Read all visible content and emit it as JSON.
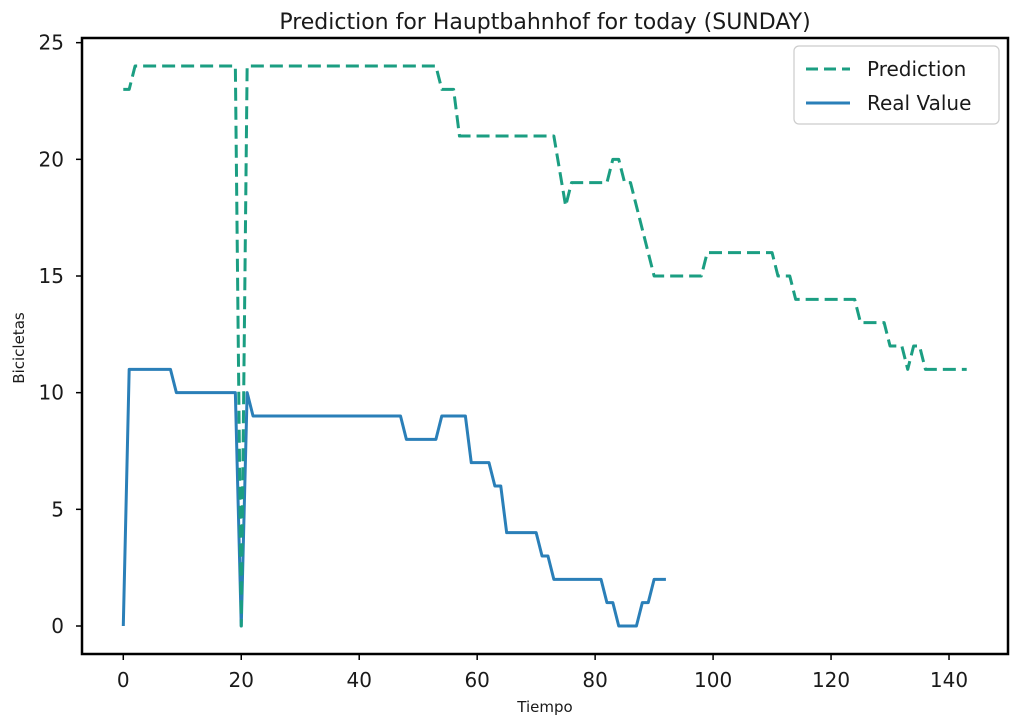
{
  "chart_data": {
    "type": "line",
    "title": "Prediction for Hauptbahnhof for today (SUNDAY)",
    "xlabel": "Tiempo",
    "ylabel": "Bicicletas",
    "xlim": [
      -7,
      150
    ],
    "ylim": [
      -1.2,
      25.2
    ],
    "xticks": [
      0,
      20,
      40,
      60,
      80,
      100,
      120,
      140
    ],
    "yticks": [
      0,
      5,
      10,
      15,
      20,
      25
    ],
    "grid": false,
    "legend_position": "top-right",
    "colors": {
      "prediction": "#1b9e82",
      "real": "#2a7fb8",
      "frame": "#000000"
    },
    "series": [
      {
        "name": "Prediction",
        "style": "dashed",
        "x": [
          0,
          1,
          2,
          3,
          4,
          5,
          6,
          7,
          8,
          9,
          10,
          11,
          12,
          13,
          14,
          15,
          16,
          17,
          18,
          19,
          20,
          21,
          22,
          23,
          24,
          25,
          26,
          27,
          28,
          29,
          30,
          31,
          32,
          33,
          34,
          35,
          36,
          37,
          38,
          39,
          40,
          41,
          42,
          43,
          44,
          45,
          46,
          47,
          48,
          49,
          50,
          51,
          52,
          53,
          54,
          55,
          56,
          57,
          58,
          59,
          60,
          61,
          62,
          63,
          64,
          65,
          66,
          67,
          68,
          69,
          70,
          71,
          72,
          73,
          74,
          75,
          76,
          77,
          78,
          79,
          80,
          81,
          82,
          83,
          84,
          85,
          86,
          87,
          88,
          89,
          90,
          91,
          92,
          93,
          94,
          95,
          96,
          97,
          98,
          99,
          100,
          101,
          102,
          103,
          104,
          105,
          106,
          107,
          108,
          109,
          110,
          111,
          112,
          113,
          114,
          115,
          116,
          117,
          118,
          119,
          120,
          121,
          122,
          123,
          124,
          125,
          126,
          127,
          128,
          129,
          130,
          131,
          132,
          133,
          134,
          135,
          136,
          137,
          138,
          139,
          140,
          141,
          142,
          143
        ],
        "y": [
          23,
          23,
          24,
          24,
          24,
          24,
          24,
          24,
          24,
          24,
          24,
          24,
          24,
          24,
          24,
          24,
          24,
          24,
          24,
          24,
          0,
          24,
          24,
          24,
          24,
          24,
          24,
          24,
          24,
          24,
          24,
          24,
          24,
          24,
          24,
          24,
          24,
          24,
          24,
          24,
          24,
          24,
          24,
          24,
          24,
          24,
          24,
          24,
          24,
          24,
          24,
          24,
          24,
          24,
          23,
          23,
          23,
          21,
          21,
          21,
          21,
          21,
          21,
          21,
          21,
          21,
          21,
          21,
          21,
          21,
          21,
          21,
          21,
          21,
          19.5,
          18,
          19,
          19,
          19,
          19,
          19,
          19,
          19,
          20,
          20,
          19,
          19,
          18,
          17,
          16,
          15,
          15,
          15,
          15,
          15,
          15,
          15,
          15,
          15,
          16,
          16,
          16,
          16,
          16,
          16,
          16,
          16,
          16,
          16,
          16,
          16,
          15,
          15,
          15,
          14,
          14,
          14,
          14,
          14,
          14,
          14,
          14,
          14,
          14,
          14,
          13,
          13,
          13,
          13,
          13,
          12,
          12,
          12,
          11,
          12,
          12,
          11,
          11,
          11,
          11,
          11,
          11,
          11,
          11
        ]
      },
      {
        "name": "Real Value",
        "style": "solid",
        "x": [
          0,
          1,
          2,
          3,
          4,
          5,
          6,
          7,
          8,
          9,
          10,
          11,
          12,
          13,
          14,
          15,
          16,
          17,
          18,
          19,
          20,
          21,
          22,
          23,
          24,
          25,
          26,
          27,
          28,
          29,
          30,
          31,
          32,
          33,
          34,
          35,
          36,
          37,
          38,
          39,
          40,
          41,
          42,
          43,
          44,
          45,
          46,
          47,
          48,
          49,
          50,
          51,
          52,
          53,
          54,
          55,
          56,
          57,
          58,
          59,
          60,
          61,
          62,
          63,
          64,
          65,
          66,
          67,
          68,
          69,
          70,
          71,
          72,
          73,
          74,
          75,
          76,
          77,
          78,
          79,
          80,
          81,
          82,
          83,
          84,
          85,
          86,
          87,
          88,
          89,
          90,
          91,
          92
        ],
        "y": [
          0,
          11,
          11,
          11,
          11,
          11,
          11,
          11,
          11,
          10,
          10,
          10,
          10,
          10,
          10,
          10,
          10,
          10,
          10,
          10,
          0,
          10,
          9,
          9,
          9,
          9,
          9,
          9,
          9,
          9,
          9,
          9,
          9,
          9,
          9,
          9,
          9,
          9,
          9,
          9,
          9,
          9,
          9,
          9,
          9,
          9,
          9,
          9,
          8,
          8,
          8,
          8,
          8,
          8,
          9,
          9,
          9,
          9,
          9,
          7,
          7,
          7,
          7,
          6,
          6,
          4,
          4,
          4,
          4,
          4,
          4,
          3,
          3,
          2,
          2,
          2,
          2,
          2,
          2,
          2,
          2,
          2,
          1,
          1,
          0,
          0,
          0,
          0,
          1,
          1,
          2,
          2,
          2
        ]
      }
    ]
  }
}
